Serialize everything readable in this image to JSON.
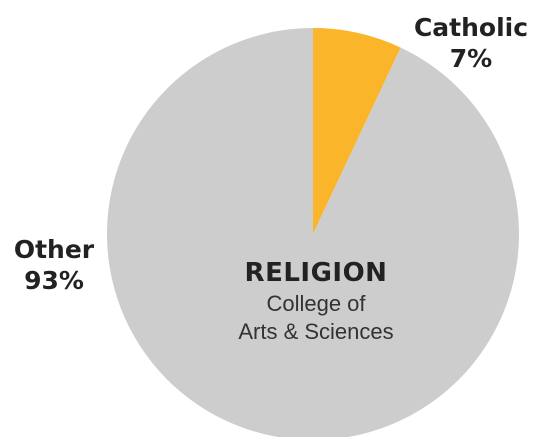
{
  "chart_data": {
    "type": "pie",
    "title": "RELIGION",
    "subtitle_lines": [
      "College of",
      "Arts & Sciences"
    ],
    "slices": [
      {
        "label": "Catholic",
        "value": 7,
        "value_label": "7%",
        "color": "#fbb52b"
      },
      {
        "label": "Other",
        "value": 93,
        "value_label": "93%",
        "color": "#cdcdcd"
      }
    ],
    "start_angle_deg": 0,
    "direction": "clockwise"
  }
}
